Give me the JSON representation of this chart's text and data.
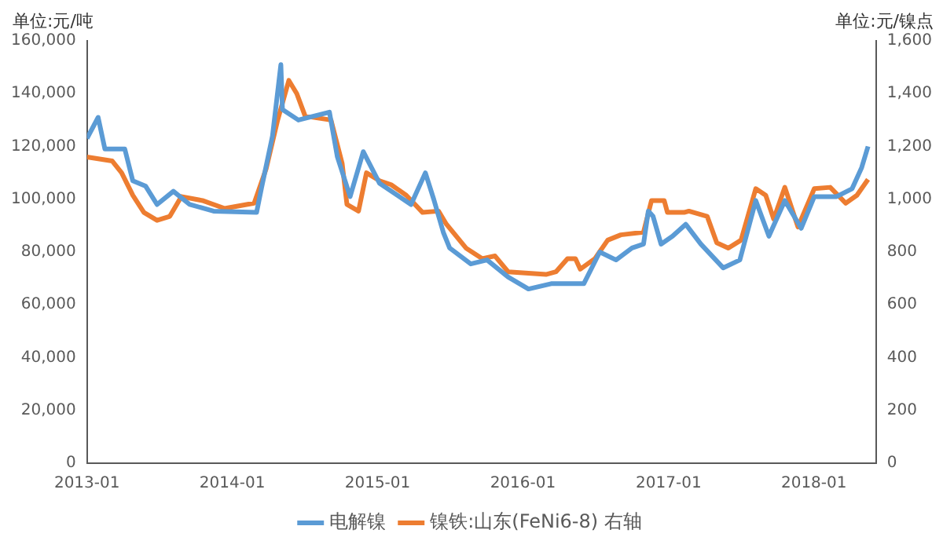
{
  "chart_data": {
    "type": "line",
    "ylabel": "单位:元/吨",
    "y2label": "单位:元/镍点",
    "xlim": [
      "2013-01-01",
      "2018-06-06"
    ],
    "xticks": [
      "2013-01",
      "2014-01",
      "2015-01",
      "2016-01",
      "2017-01",
      "2018-01"
    ],
    "ylim": [
      0,
      160000
    ],
    "yticks": [
      0,
      {
        "value": 20000,
        "label": "20,000"
      },
      {
        "value": 40000,
        "label": "40,000"
      },
      {
        "value": 60000,
        "label": "60,000"
      },
      {
        "value": 80000,
        "label": "80,000"
      },
      {
        "value": 100000,
        "label": "100,000"
      },
      {
        "value": 120000,
        "label": "120,000"
      },
      {
        "value": 140000,
        "label": "140,000"
      },
      {
        "value": 160000,
        "label": "160,000"
      }
    ],
    "y2lim": [
      0,
      1600
    ],
    "y2ticks": [
      0,
      200,
      400,
      600,
      800,
      {
        "value": 1000,
        "label": "1,000"
      },
      {
        "value": 1200,
        "label": "1,200"
      },
      {
        "value": 1400,
        "label": "1,400"
      },
      {
        "value": 1600,
        "label": "1,600"
      }
    ],
    "legend": "bottom",
    "marker": "none",
    "line_style": "solid",
    "series": [
      {
        "name": "电解镍",
        "color": "#5b9bd5",
        "x": [
          "2013-01-01",
          "2013-01-29",
          "2013-02-15",
          "2013-04-06",
          "2013-04-26",
          "2013-05-28",
          "2013-06-26",
          "2013-08-06",
          "2013-09-16",
          "2013-11-15",
          "2014-03-03",
          "2014-03-15",
          "2014-04-12",
          "2014-05-03",
          "2014-05-07",
          "2014-06-16",
          "2014-09-02",
          "2014-09-22",
          "2014-10-24",
          "2014-11-26",
          "2015-01-06",
          "2015-03-26",
          "2015-05-01",
          "2015-05-22",
          "2015-06-15",
          "2015-07-01",
          "2015-08-23",
          "2015-10-03",
          "2015-11-25",
          "2016-01-15",
          "2016-03-12",
          "2016-06-02",
          "2016-07-12",
          "2016-08-22",
          "2016-10-01",
          "2016-10-30",
          "2016-11-11",
          "2016-11-23",
          "2016-12-13",
          "2017-01-11",
          "2017-02-13",
          "2017-03-23",
          "2017-05-18",
          "2017-06-29",
          "2017-08-08",
          "2017-09-10",
          "2017-10-20",
          "2017-11-30",
          "2018-01-02",
          "2018-02-27",
          "2018-04-07",
          "2018-05-01",
          "2018-05-17"
        ],
        "values": [
          123000,
          131000,
          119000,
          119000,
          107000,
          105000,
          98000,
          103000,
          98000,
          95500,
          95000,
          104000,
          124000,
          151000,
          134000,
          130000,
          133000,
          116000,
          101000,
          118000,
          106000,
          98000,
          110000,
          100000,
          87500,
          81500,
          75500,
          77000,
          70500,
          66000,
          68000,
          68000,
          80000,
          77000,
          81500,
          83000,
          95500,
          93500,
          83000,
          86000,
          90500,
          83000,
          74000,
          77000,
          99500,
          86000,
          99500,
          89000,
          101000,
          101000,
          104000,
          112000,
          120000
        ]
      },
      {
        "name": "镍铁:山东(FeNi6-8) 右轴",
        "color": "#ed7d31",
        "axis": "y2",
        "x": [
          "2013-01-01",
          "2013-03-05",
          "2013-03-29",
          "2013-04-26",
          "2013-05-24",
          "2013-06-26",
          "2013-07-28",
          "2013-08-26",
          "2013-10-18",
          "2013-12-13",
          "2014-02-25",
          "2014-03-27",
          "2014-04-25",
          "2014-05-23",
          "2014-06-12",
          "2014-07-03",
          "2014-09-06",
          "2014-10-04",
          "2014-10-16",
          "2014-11-14",
          "2014-12-04",
          "2015-01-06",
          "2015-02-04",
          "2015-03-14",
          "2015-04-24",
          "2015-06-03",
          "2015-06-23",
          "2015-08-11",
          "2015-09-21",
          "2015-10-23",
          "2015-11-25",
          "2016-02-28",
          "2016-03-24",
          "2016-04-22",
          "2016-05-12",
          "2016-05-24",
          "2016-06-30",
          "2016-08-01",
          "2016-09-03",
          "2016-10-30",
          "2016-11-19",
          "2016-12-21",
          "2016-12-29",
          "2017-02-09",
          "2017-02-21",
          "2017-04-08",
          "2017-05-02",
          "2017-05-31",
          "2017-07-02",
          "2017-08-08",
          "2017-09-02",
          "2017-09-22",
          "2017-10-20",
          "2017-11-22",
          "2018-01-02",
          "2018-02-11",
          "2018-03-22",
          "2018-04-19",
          "2018-05-17"
        ],
        "values": [
          1160,
          1145,
          1100,
          1015,
          950,
          920,
          935,
          1010,
          995,
          965,
          985,
          1115,
          1300,
          1450,
          1400,
          1315,
          1300,
          1135,
          980,
          955,
          1100,
          1070,
          1055,
          1015,
          950,
          955,
          905,
          815,
          775,
          785,
          725,
          715,
          725,
          775,
          775,
          735,
          775,
          845,
          865,
          875,
          995,
          995,
          950,
          950,
          955,
          935,
          835,
          815,
          845,
          1040,
          1015,
          925,
          1045,
          895,
          1040,
          1045,
          985,
          1015,
          1075
        ]
      }
    ]
  }
}
